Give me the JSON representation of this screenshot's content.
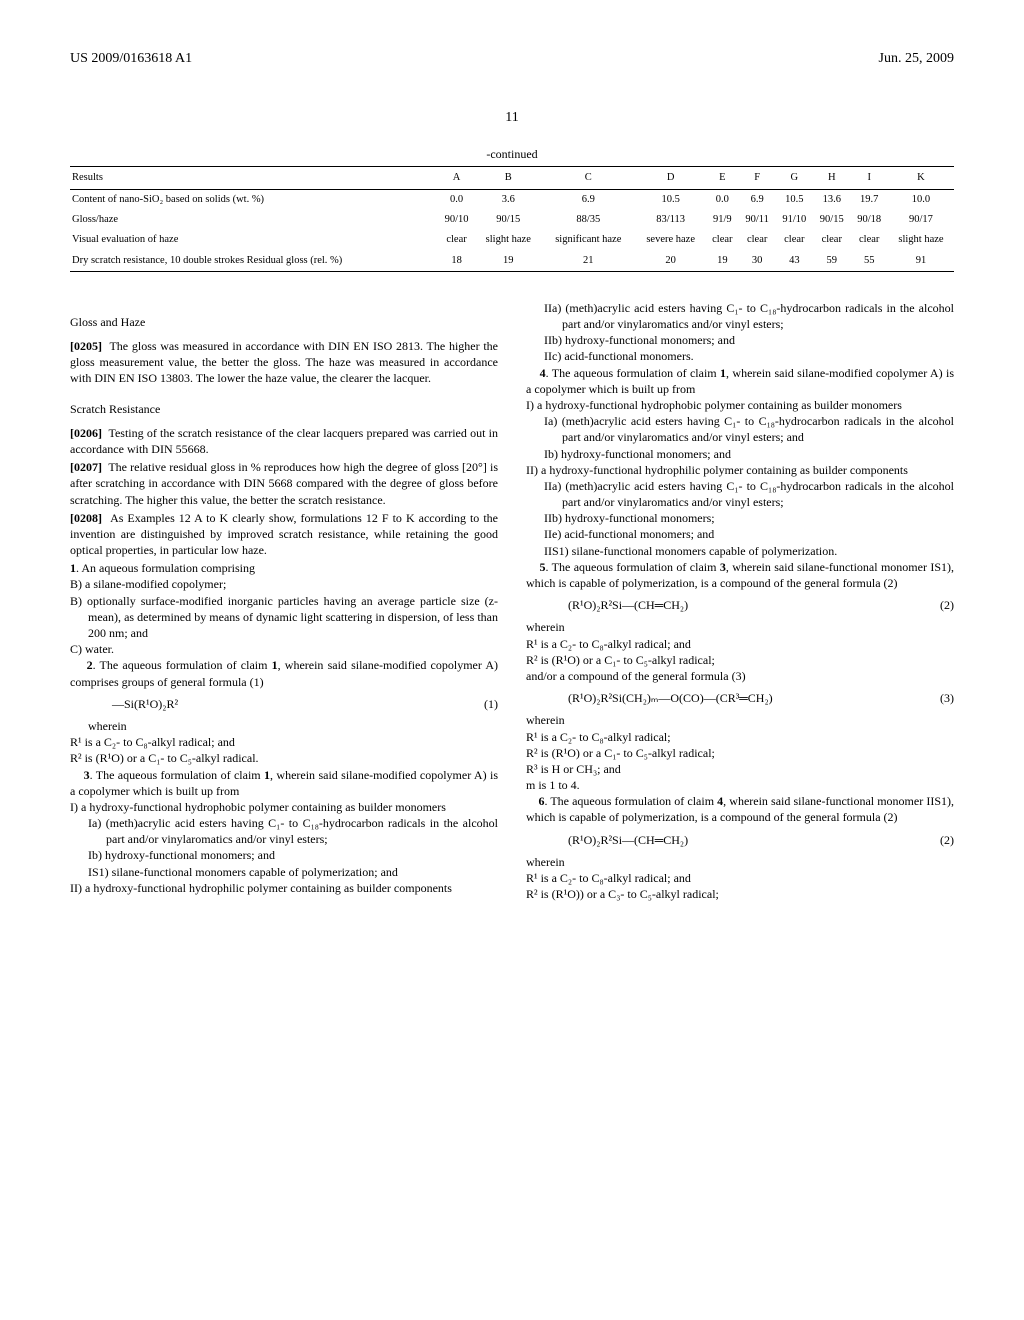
{
  "header": {
    "left": "US 2009/0163618 A1",
    "right": "Jun. 25, 2009"
  },
  "page_number": "11",
  "table": {
    "type": "table",
    "title": "-continued",
    "columns": [
      "Results",
      "A",
      "B",
      "C",
      "D",
      "E",
      "F",
      "G",
      "H",
      "I",
      "K"
    ],
    "rows": [
      {
        "label": "Content of nano-SiO₂ based on solids (wt. %)",
        "cells": [
          "0.0",
          "3.6",
          "6.9",
          "10.5",
          "0.0",
          "6.9",
          "10.5",
          "13.6",
          "19.7",
          "10.0"
        ]
      },
      {
        "label": "Gloss/haze",
        "cells": [
          "90/10",
          "90/15",
          "88/35",
          "83/113",
          "91/9",
          "90/11",
          "91/10",
          "90/15",
          "90/18",
          "90/17"
        ]
      },
      {
        "label": "Visual evaluation of haze",
        "cells": [
          "clear",
          "slight haze",
          "significant haze",
          "severe haze",
          "clear",
          "clear",
          "clear",
          "clear",
          "clear",
          "slight haze"
        ]
      },
      {
        "label": "Dry scratch resistance, 10 double strokes Residual gloss (rel. %)",
        "cells": [
          "18",
          "19",
          "21",
          "20",
          "19",
          "30",
          "43",
          "59",
          "55",
          "91"
        ]
      }
    ],
    "font_size_pt": 10.5,
    "rule_color": "#000000"
  },
  "left_col": {
    "gloss_head": "Gloss and Haze",
    "p0205_num": "[0205]",
    "p0205": "The gloss was measured in accordance with DIN EN ISO 2813. The higher the gloss measurement value, the better the gloss. The haze was measured in accordance with DIN EN ISO 13803. The lower the haze value, the clearer the lacquer.",
    "scratch_head": "Scratch Resistance",
    "p0206_num": "[0206]",
    "p0206": "Testing of the scratch resistance of the clear lacquers prepared was carried out in accordance with DIN 55668.",
    "p0207_num": "[0207]",
    "p0207": "The relative residual gloss in % reproduces how high the degree of gloss [20°] is after scratching in accordance with DIN 5668 compared with the degree of gloss before scratching. The higher this value, the better the scratch resistance.",
    "p0208_num": "[0208]",
    "p0208": "As Examples 12 A to K clearly show, formulations 12 F to K according to the invention are distinguished by improved scratch resistance, while retaining the good optical properties, in particular low haze.",
    "c1_lead_num": "1",
    "c1_lead": ". An aqueous formulation comprising",
    "c1_b1": "B) a silane-modified copolymer;",
    "c1_b2": "B) optionally surface-modified inorganic particles having an average particle size (z-mean), as determined by means of dynamic light scattering in dispersion, of less than 200 nm; and",
    "c1_c": "C) water.",
    "c2_lead_a": "2",
    "c2_lead_b": ". The aqueous formulation of claim ",
    "c2_lead_c": "1",
    "c2_lead_d": ", wherein said silane-modified copolymer A) comprises groups of general formula (1)",
    "c2_formula": "—Si(R¹O)₂R²",
    "c2_formula_num": "(1)",
    "c2_wherein": "wherein",
    "c2_r1": "R¹ is a C₂- to C₈-alkyl radical; and",
    "c2_r2": "R² is (R¹O) or a C₁- to C₅-alkyl radical.",
    "c3_lead_a": "3",
    "c3_lead_b": ". The aqueous formulation of claim ",
    "c3_lead_c": "1",
    "c3_lead_d": ", wherein said silane-modified copolymer A) is a copolymer which is built up from",
    "c3_I": "I) a hydroxy-functional hydrophobic polymer containing as builder monomers",
    "c3_Ia": "Ia) (meth)acrylic acid esters having C₁- to C₁₈-hydrocarbon radicals in the alcohol part and/or vinylaromatics and/or vinyl esters;",
    "c3_Ib": "Ib) hydroxy-functional monomers; and",
    "c3_IS1": "IS1) silane-functional monomers capable of polymerization; and",
    "c3_II": "II) a hydroxy-functional hydrophilic polymer containing as builder components"
  },
  "right_col": {
    "c3_IIa": "IIa) (meth)acrylic acid esters having C₁- to C₁₈-hydrocarbon radicals in the alcohol part and/or vinylaromatics and/or vinyl esters;",
    "c3_IIb": "IIb) hydroxy-functional monomers; and",
    "c3_IIc": "IIc) acid-functional monomers.",
    "c4_lead_a": "4",
    "c4_lead_b": ". The aqueous formulation of claim ",
    "c4_lead_c": "1",
    "c4_lead_d": ", wherein said silane-modified copolymer A) is a copolymer which is built up from",
    "c4_I": "I) a hydroxy-functional hydrophobic polymer containing as builder monomers",
    "c4_Ia": "Ia) (meth)acrylic acid esters having C₁- to C₁₈-hydrocarbon radicals in the alcohol part and/or vinylaromatics and/or vinyl esters; and",
    "c4_Ib": "Ib) hydroxy-functional monomers; and",
    "c4_II": "II) a hydroxy-functional hydrophilic polymer containing as builder components",
    "c4_IIa": "IIa) (meth)acrylic acid esters having C₁- to C₁₈-hydrocarbon radicals in the alcohol part and/or vinylaromatics and/or vinyl esters;",
    "c4_IIb": "IIb) hydroxy-functional monomers;",
    "c4_IIe": "IIe) acid-functional monomers; and",
    "c4_IIS1": "IIS1) silane-functional monomers capable of polymerization.",
    "c5_lead_a": "5",
    "c5_lead_b": ". The aqueous formulation of claim ",
    "c5_lead_c": "3",
    "c5_lead_d": ", wherein said silane-functional monomer IS1), which is capable of polymerization, is a compound of the general formula (2)",
    "c5_f2": "(R¹O)₂R²Si—(CH═CH₂)",
    "c5_f2_num": "(2)",
    "c5_wherein": "wherein",
    "c5_r1": "R¹ is a C₂- to C₈-alkyl radical; and",
    "c5_r2": "R² is (R¹O) or a C₁- to C₅-alkyl radical;",
    "c5_andor": "and/or a compound of the general formula (3)",
    "c5_f3": "(R¹O)₂R²Si(CH₂)ₘ—O(CO)—(CR³═CH₂)",
    "c5_f3_num": "(3)",
    "c5_wherein2": "wherein",
    "c5_r1b": "R¹ is a C₂- to C₈-alkyl radical;",
    "c5_r2b": "R² is (R¹O) or a C₁- to C₅-alkyl radical;",
    "c5_r3": "R³ is H or CH₃; and",
    "c5_m": "m is 1 to 4.",
    "c6_lead_a": "6",
    "c6_lead_b": ". The aqueous formulation of claim ",
    "c6_lead_c": "4",
    "c6_lead_d": ", wherein said silane-functional monomer IIS1), which is capable of polymerization, is a compound of the general formula (2)",
    "c6_f2": "(R¹O)₂R²Si—(CH═CH₂)",
    "c6_f2_num": "(2)",
    "c6_wherein": "wherein",
    "c6_r1": "R¹ is a C₂- to C₈-alkyl radical; and",
    "c6_r2": "R² is (R¹O)) or a C₃- to C₅-alkyl radical;"
  }
}
